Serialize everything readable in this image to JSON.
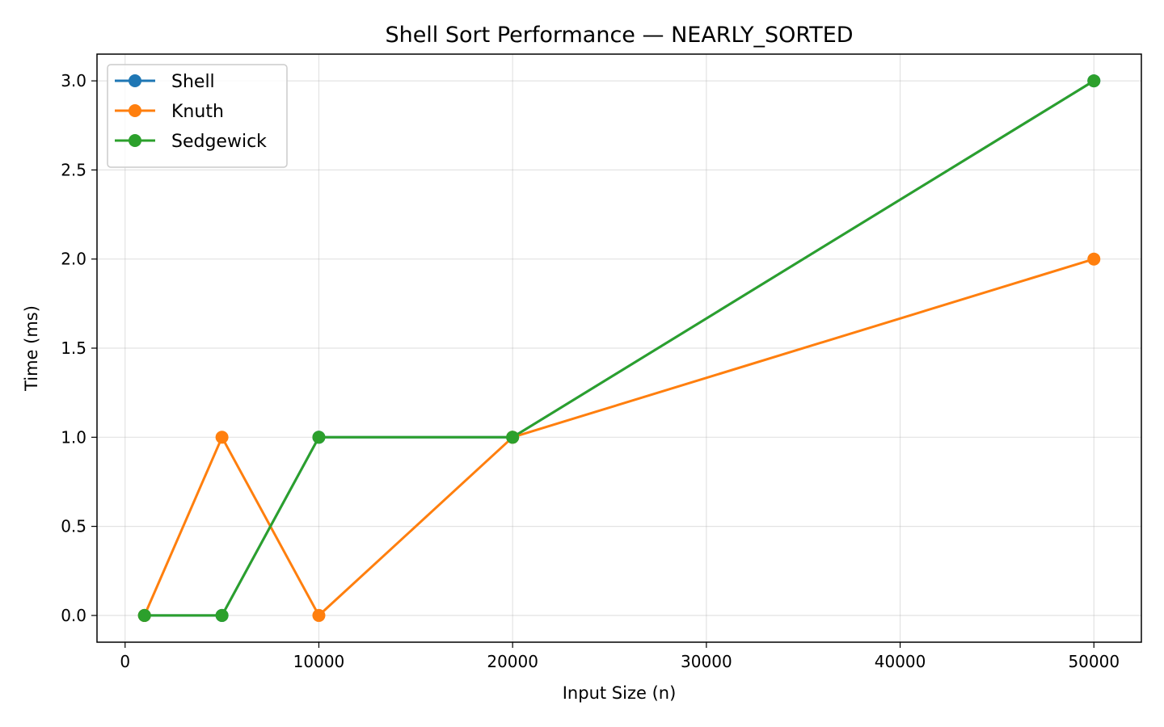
{
  "chart_data": {
    "type": "line",
    "title": "Shell Sort Performance — NEARLY_SORTED",
    "xlabel": "Input Size (n)",
    "ylabel": "Time (ms)",
    "x": [
      1000,
      5000,
      10000,
      20000,
      50000
    ],
    "xlim": [
      -1450,
      52450
    ],
    "ylim": [
      -0.15,
      3.15
    ],
    "xticks": [
      0,
      10000,
      20000,
      30000,
      40000,
      50000
    ],
    "xtick_labels": [
      "0",
      "10000",
      "20000",
      "30000",
      "40000",
      "50000"
    ],
    "yticks": [
      0.0,
      0.5,
      1.0,
      1.5,
      2.0,
      2.5,
      3.0
    ],
    "ytick_labels": [
      "0.0",
      "0.5",
      "1.0",
      "1.5",
      "2.0",
      "2.5",
      "3.0"
    ],
    "grid": true,
    "legend_position": "upper-left",
    "series": [
      {
        "name": "Shell",
        "color": "#1f77b4",
        "values": [
          0,
          0,
          1,
          1,
          3
        ]
      },
      {
        "name": "Knuth",
        "color": "#ff7f0e",
        "values": [
          0,
          1,
          0,
          1,
          2
        ]
      },
      {
        "name": "Sedgewick",
        "color": "#2ca02c",
        "values": [
          0,
          0,
          1,
          1,
          3
        ]
      }
    ]
  }
}
